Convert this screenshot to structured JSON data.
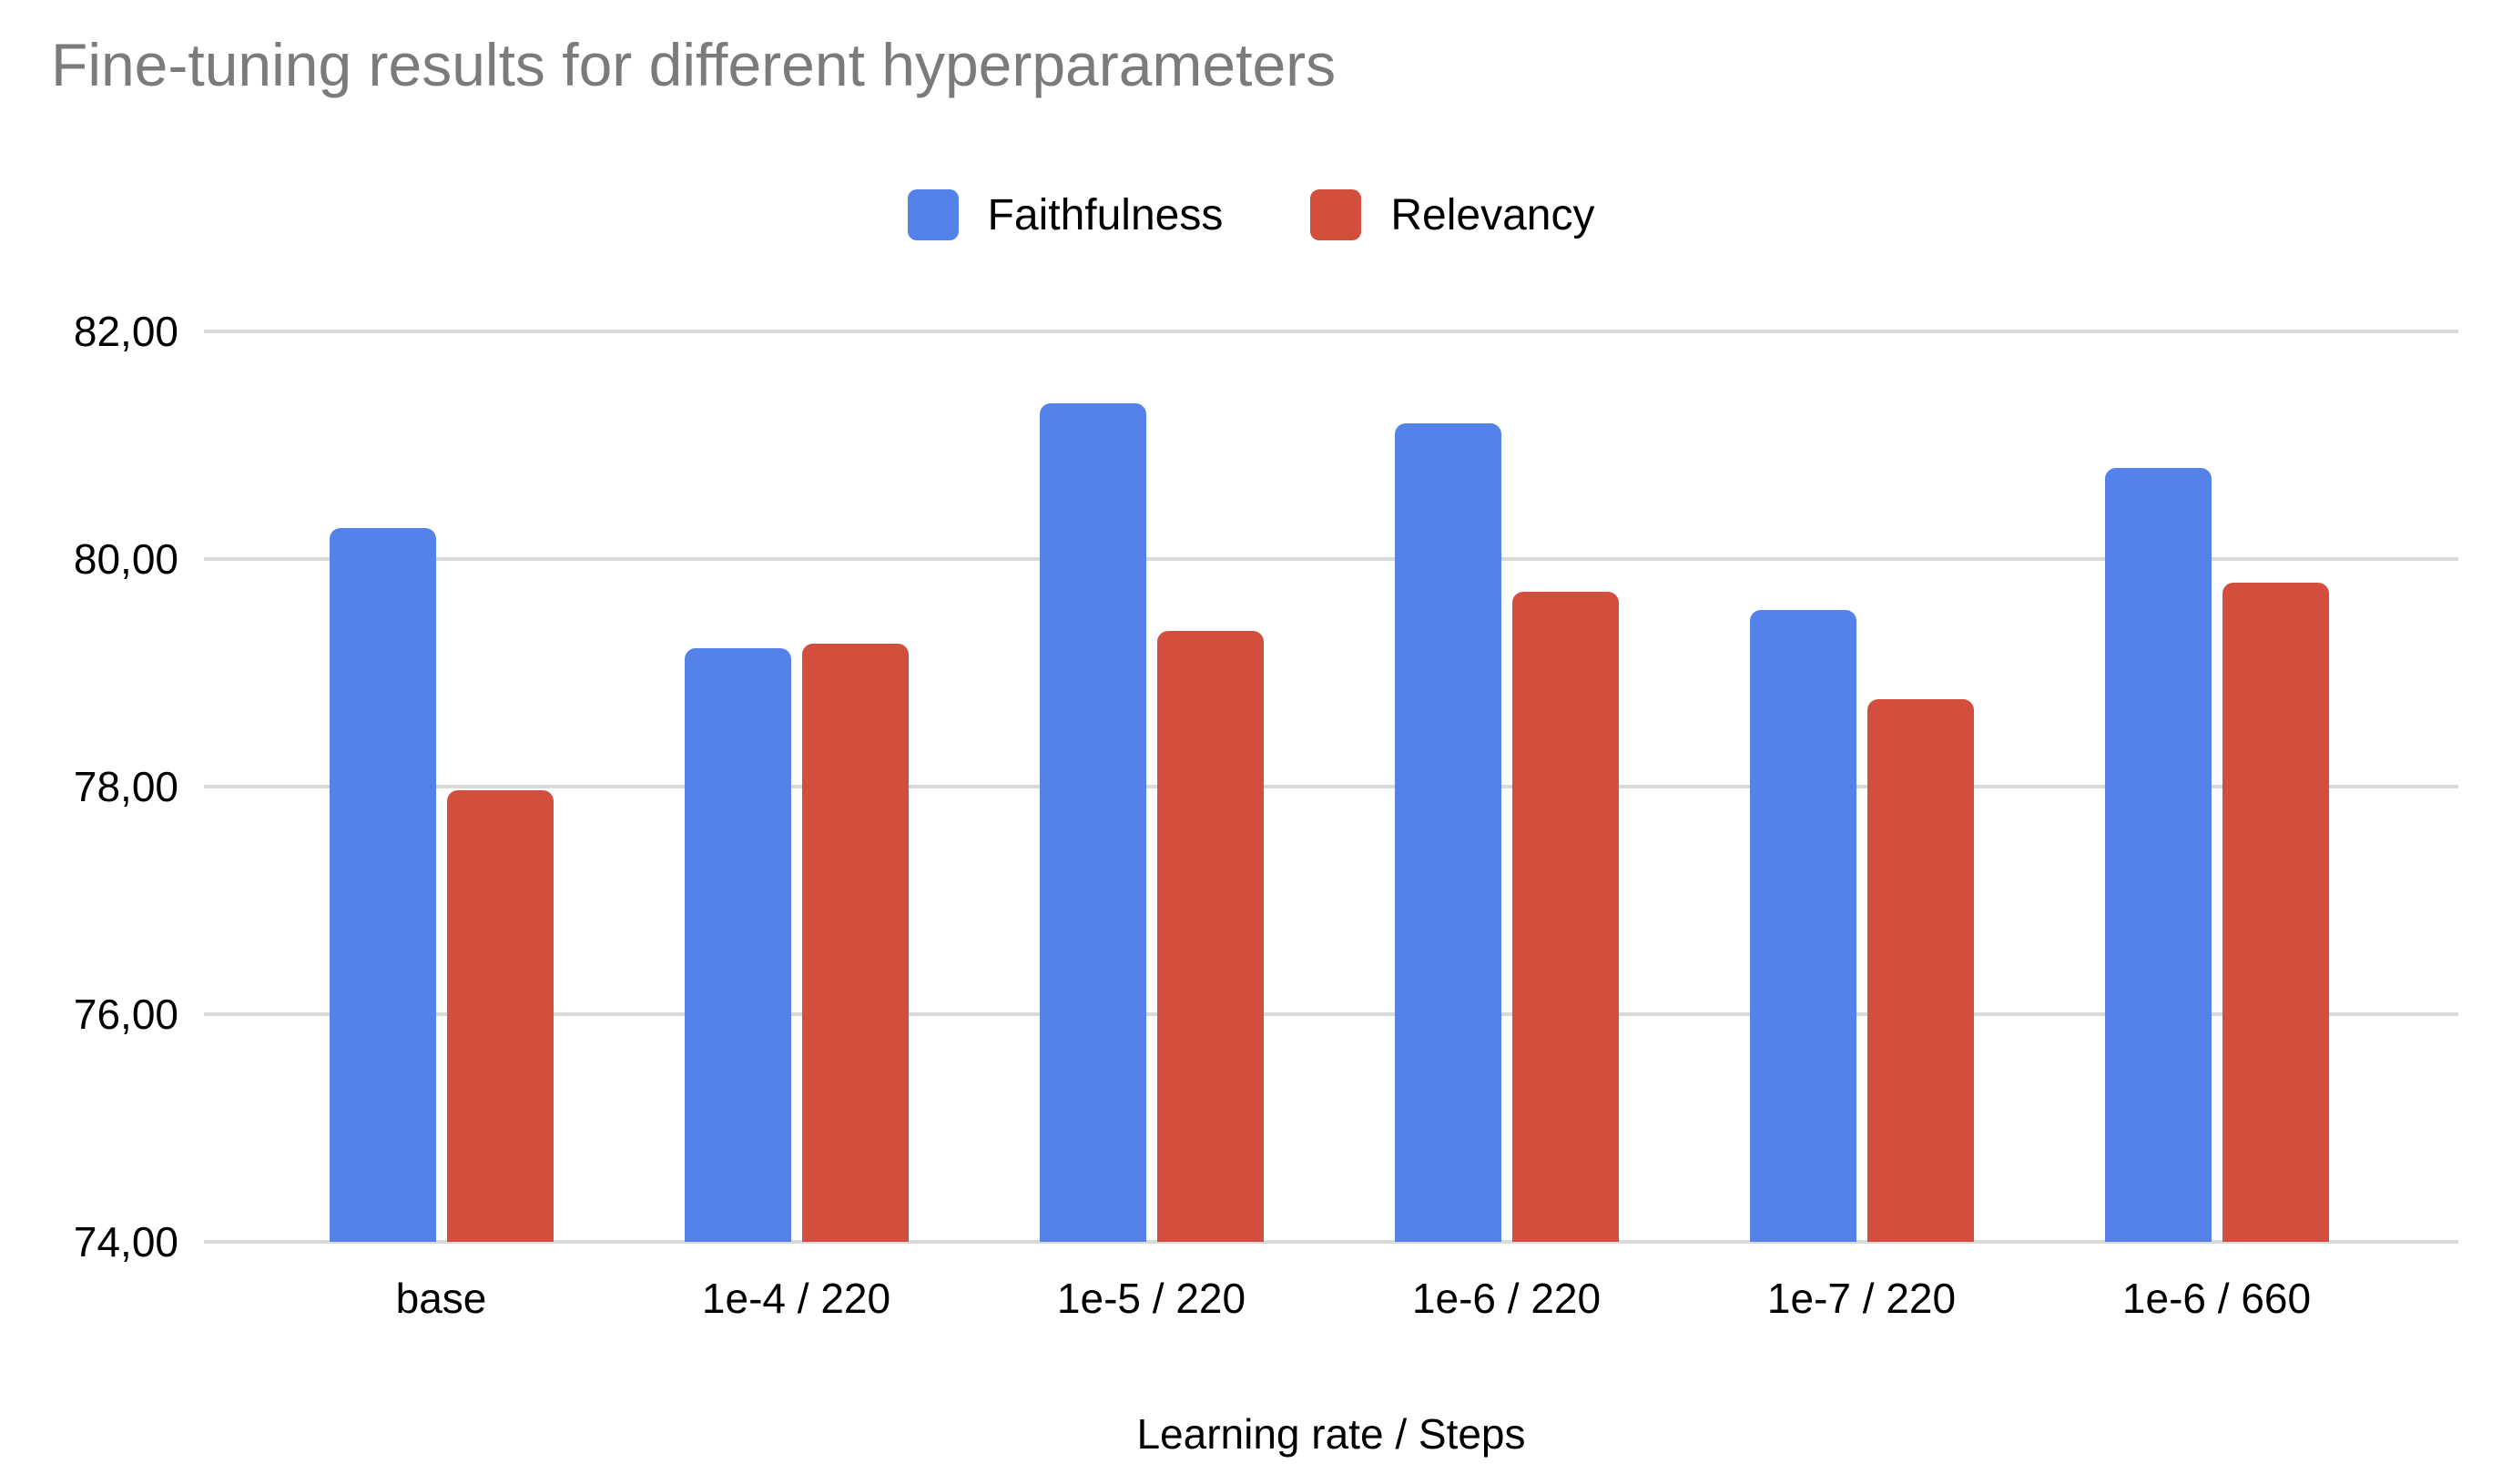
{
  "chart_data": {
    "type": "bar",
    "title": "Fine-tuning results for different hyperparameters",
    "xlabel": "Learning rate / Steps",
    "ylabel": "",
    "categories": [
      "base",
      "1e-4 / 220",
      "1e-5 / 220",
      "1e-6 / 220",
      "1e-7 / 220",
      "1e-6 / 660"
    ],
    "series": [
      {
        "name": "Faithfulness",
        "color": "#5482E8",
        "values": [
          80.27,
          79.22,
          81.37,
          81.19,
          79.55,
          80.8
        ]
      },
      {
        "name": "Relevancy",
        "color": "#D14F3C",
        "values": [
          77.97,
          79.26,
          79.37,
          79.71,
          78.77,
          79.79
        ]
      }
    ],
    "ylim": [
      74,
      82
    ],
    "y_ticks": [
      {
        "value": 82,
        "label": "82,00"
      },
      {
        "value": 80,
        "label": "80,00"
      },
      {
        "value": 78,
        "label": "78,00"
      },
      {
        "value": 76,
        "label": "76,00"
      },
      {
        "value": 74,
        "label": "74,00"
      }
    ],
    "grid": true,
    "legend_position": "top",
    "background_color": "#ffffff",
    "title_color": "#7b7b7b",
    "gridline_color": "#d9d9d9",
    "axis_text_color": "#000000"
  }
}
